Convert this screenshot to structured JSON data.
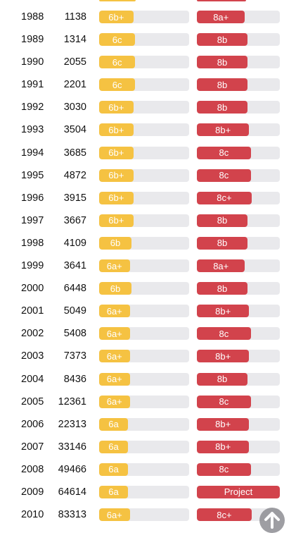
{
  "colors": {
    "median_fill": "#f5c242",
    "hardest_fill": "#d2434c",
    "track": "#e9e9ec"
  },
  "scroll_top_icon": "arrow-up-icon",
  "rows": [
    {
      "year": "1988",
      "count": "1138",
      "median_grade": "6b+",
      "median_fill": 0.38,
      "hardest_grade": "8a+",
      "hardest_fill": 0.58
    },
    {
      "year": "1989",
      "count": "1314",
      "median_grade": "6c",
      "median_fill": 0.4,
      "hardest_grade": "8b",
      "hardest_fill": 0.61
    },
    {
      "year": "1990",
      "count": "2055",
      "median_grade": "6c",
      "median_fill": 0.4,
      "hardest_grade": "8b",
      "hardest_fill": 0.61
    },
    {
      "year": "1991",
      "count": "2201",
      "median_grade": "6c",
      "median_fill": 0.4,
      "hardest_grade": "8b",
      "hardest_fill": 0.61
    },
    {
      "year": "1992",
      "count": "3030",
      "median_grade": "6b+",
      "median_fill": 0.38,
      "hardest_grade": "8b",
      "hardest_fill": 0.61
    },
    {
      "year": "1993",
      "count": "3504",
      "median_grade": "6b+",
      "median_fill": 0.38,
      "hardest_grade": "8b+",
      "hardest_fill": 0.63
    },
    {
      "year": "1994",
      "count": "3685",
      "median_grade": "6b+",
      "median_fill": 0.38,
      "hardest_grade": "8c",
      "hardest_fill": 0.65
    },
    {
      "year": "1995",
      "count": "4872",
      "median_grade": "6b+",
      "median_fill": 0.38,
      "hardest_grade": "8c",
      "hardest_fill": 0.65
    },
    {
      "year": "1996",
      "count": "3915",
      "median_grade": "6b+",
      "median_fill": 0.38,
      "hardest_grade": "8c+",
      "hardest_fill": 0.66
    },
    {
      "year": "1997",
      "count": "3667",
      "median_grade": "6b+",
      "median_fill": 0.38,
      "hardest_grade": "8b",
      "hardest_fill": 0.61
    },
    {
      "year": "1998",
      "count": "4109",
      "median_grade": "6b",
      "median_fill": 0.36,
      "hardest_grade": "8b",
      "hardest_fill": 0.61
    },
    {
      "year": "1999",
      "count": "3641",
      "median_grade": "6a+",
      "median_fill": 0.34,
      "hardest_grade": "8a+",
      "hardest_fill": 0.58
    },
    {
      "year": "2000",
      "count": "6448",
      "median_grade": "6b",
      "median_fill": 0.36,
      "hardest_grade": "8b",
      "hardest_fill": 0.61
    },
    {
      "year": "2001",
      "count": "5049",
      "median_grade": "6a+",
      "median_fill": 0.34,
      "hardest_grade": "8b+",
      "hardest_fill": 0.63
    },
    {
      "year": "2002",
      "count": "5408",
      "median_grade": "6a+",
      "median_fill": 0.34,
      "hardest_grade": "8c",
      "hardest_fill": 0.65
    },
    {
      "year": "2003",
      "count": "7373",
      "median_grade": "6a+",
      "median_fill": 0.34,
      "hardest_grade": "8b+",
      "hardest_fill": 0.63
    },
    {
      "year": "2004",
      "count": "8436",
      "median_grade": "6a+",
      "median_fill": 0.34,
      "hardest_grade": "8b",
      "hardest_fill": 0.61
    },
    {
      "year": "2005",
      "count": "12361",
      "median_grade": "6a+",
      "median_fill": 0.34,
      "hardest_grade": "8c",
      "hardest_fill": 0.65
    },
    {
      "year": "2006",
      "count": "22313",
      "median_grade": "6a",
      "median_fill": 0.32,
      "hardest_grade": "8b+",
      "hardest_fill": 0.63
    },
    {
      "year": "2007",
      "count": "33146",
      "median_grade": "6a",
      "median_fill": 0.32,
      "hardest_grade": "8b+",
      "hardest_fill": 0.63
    },
    {
      "year": "2008",
      "count": "49466",
      "median_grade": "6a",
      "median_fill": 0.32,
      "hardest_grade": "8c",
      "hardest_fill": 0.65
    },
    {
      "year": "2009",
      "count": "64614",
      "median_grade": "6a",
      "median_fill": 0.32,
      "hardest_grade": "Project",
      "hardest_fill": 1.0
    },
    {
      "year": "2010",
      "count": "83313",
      "median_grade": "6a+",
      "median_fill": 0.34,
      "hardest_grade": "8c+",
      "hardest_fill": 0.66
    }
  ]
}
